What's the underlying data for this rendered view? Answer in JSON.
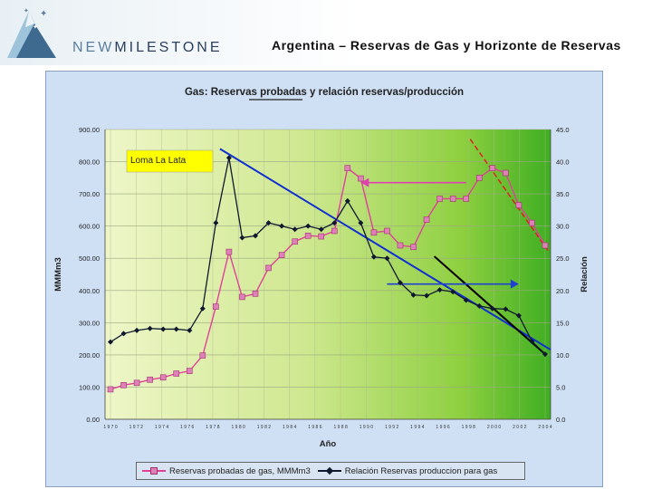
{
  "header": {
    "logo_text_a": "NEW",
    "logo_text_b": "MILESTONE",
    "title": "Argentina – Reservas de Gas y Horizonte de Reservas"
  },
  "colors": {
    "reservas": "#e0409a",
    "relacion": "#101830",
    "trend_blue": "#1030d0",
    "trend_black": "#000000",
    "arrow_pink": "#e040b0",
    "arrow_blue": "#2040d0",
    "red_dash": "#e02020",
    "callout_bg": "#ffff00"
  },
  "chart_data": {
    "type": "line",
    "title": "Gas: Reservas probadas y relación reservas/producción",
    "title_underlined_word": "probadas",
    "xlabel": "Año",
    "ylabel": "MMMm3",
    "y2label": "Relación",
    "ylim": [
      0,
      900
    ],
    "y2lim": [
      0,
      45
    ],
    "y_ticks": [
      "0.00",
      "100.00",
      "200.00",
      "300.00",
      "400.00",
      "500.00",
      "600.00",
      "700.00",
      "800.00",
      "900.00"
    ],
    "y2_ticks": [
      "0.0",
      "5.0",
      "10.0",
      "15.0",
      "20.0",
      "25.0",
      "30.0",
      "35.0",
      "40.0",
      "45.0"
    ],
    "x_tick_labels": [
      "1 9 7 0",
      "1 9 7 2",
      "1 9 7 4",
      "1 9 7 6",
      "1 9 7 8",
      "1 9 8 0",
      "1 9 8 2",
      "1 9 8 4",
      "1 9 8 6",
      "1 9 8 8",
      "1 9 9 0",
      "1 9 9 2",
      "1 9 9 4",
      "1 9 9 6",
      "1 9 9 8",
      "2 0 0 0",
      "2 0 0 2",
      "2 0 0 4"
    ],
    "grid": true,
    "legend_position": "bottom",
    "annotations": [
      {
        "text": "Loma La Lata"
      }
    ],
    "series": [
      {
        "name": "Reservas probadas de gas, MMMm3",
        "axis": "left",
        "values": [
          93,
          106,
          113,
          123,
          130,
          142,
          150,
          198,
          350,
          520,
          380,
          390,
          470,
          510,
          552,
          570,
          568,
          585,
          780,
          748,
          580,
          585,
          540,
          535,
          620,
          685,
          685,
          685,
          750,
          780,
          765,
          665,
          610,
          540
        ]
      },
      {
        "name": "Relación Reservas produccion para gas",
        "axis": "right",
        "values": [
          12.0,
          13.3,
          13.8,
          14.1,
          14.0,
          14.0,
          13.8,
          17.2,
          30.5,
          40.6,
          28.2,
          28.5,
          30.5,
          30.0,
          29.5,
          30.0,
          29.5,
          30.5,
          33.9,
          30.5,
          25.2,
          25.0,
          21.2,
          19.3,
          19.2,
          20.1,
          19.8,
          18.5,
          17.6,
          17.2,
          17.1,
          16.1,
          12.1,
          10.1
        ]
      }
    ]
  }
}
